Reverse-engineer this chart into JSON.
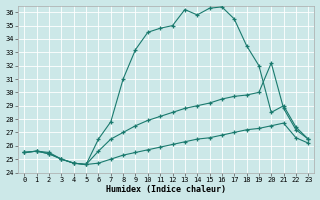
{
  "xlabel": "Humidex (Indice chaleur)",
  "bg_color": "#cce8e8",
  "grid_color": "#ffffff",
  "line_color": "#1a7a6e",
  "xlim": [
    -0.5,
    23.5
  ],
  "ylim": [
    24,
    36.5
  ],
  "yticks": [
    24,
    25,
    26,
    27,
    28,
    29,
    30,
    31,
    32,
    33,
    34,
    35,
    36
  ],
  "xticks": [
    0,
    1,
    2,
    3,
    4,
    5,
    6,
    7,
    8,
    9,
    10,
    11,
    12,
    13,
    14,
    15,
    16,
    17,
    18,
    19,
    20,
    21,
    22,
    23
  ],
  "line1_x": [
    0,
    1,
    2,
    3,
    4,
    5,
    6,
    7,
    8,
    9,
    10,
    11,
    12,
    13,
    14,
    15,
    16,
    17,
    18,
    19,
    20,
    21,
    22,
    23
  ],
  "line1_y": [
    25.5,
    25.6,
    25.5,
    25.0,
    24.7,
    24.6,
    26.5,
    27.8,
    31.0,
    33.2,
    34.5,
    34.8,
    35.0,
    36.2,
    35.8,
    36.3,
    36.4,
    35.5,
    33.5,
    32.0,
    28.5,
    29.0,
    27.4,
    26.5
  ],
  "line2_x": [
    0,
    1,
    2,
    3,
    4,
    5,
    6,
    7,
    8,
    9,
    10,
    11,
    12,
    13,
    14,
    15,
    16,
    17,
    18,
    19,
    20,
    21,
    22,
    23
  ],
  "line2_y": [
    25.5,
    25.6,
    25.4,
    25.0,
    24.7,
    24.6,
    25.6,
    26.5,
    27.0,
    27.5,
    27.9,
    28.2,
    28.5,
    28.8,
    29.0,
    29.2,
    29.5,
    29.7,
    29.8,
    30.0,
    32.2,
    28.8,
    27.2,
    26.5
  ],
  "line3_x": [
    0,
    1,
    2,
    3,
    4,
    5,
    6,
    7,
    8,
    9,
    10,
    11,
    12,
    13,
    14,
    15,
    16,
    17,
    18,
    19,
    20,
    21,
    22,
    23
  ],
  "line3_y": [
    25.5,
    25.6,
    25.4,
    25.0,
    24.7,
    24.6,
    24.7,
    25.0,
    25.3,
    25.5,
    25.7,
    25.9,
    26.1,
    26.3,
    26.5,
    26.6,
    26.8,
    27.0,
    27.2,
    27.3,
    27.5,
    27.7,
    26.6,
    26.2
  ]
}
